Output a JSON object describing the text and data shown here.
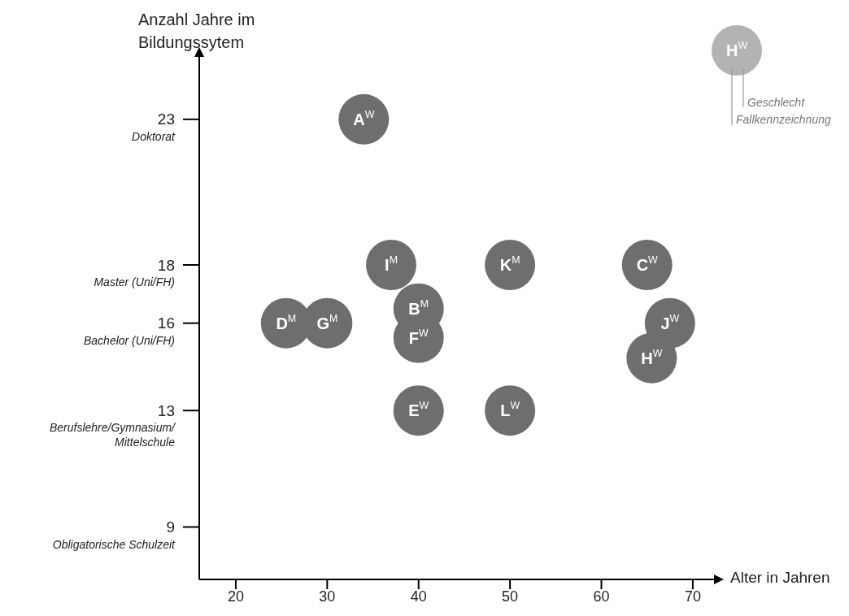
{
  "chart_data": {
    "type": "scatter",
    "xlabel": "Alter in Jahren",
    "ylabel": "Anzahl Jahre im Bildungssytem",
    "x": [
      34,
      37,
      50,
      65,
      40,
      25.5,
      30,
      40,
      67.5,
      65.5,
      40,
      50
    ],
    "series": [
      {
        "color": "#6e6e6e",
        "values": [
          23,
          18,
          18,
          18,
          16.5,
          16,
          16,
          15.5,
          16,
          14.8,
          13,
          13
        ],
        "value_labels": [
          "A$^{W}$",
          "I$^{M}$",
          "K$^{M}$",
          "C$^{W}$",
          "B$^{M}$",
          "D$^{M}$",
          "G$^{M}$",
          "F$^{W}$",
          "J$^{W}$",
          "H$^{W}$",
          "E$^{W}$",
          "L$^{W}$"
        ]
      }
    ],
    "marker": "circle",
    "xlim": [
      16,
      72.5
    ],
    "ylim": [
      7.2,
      25.2
    ],
    "xticks": [
      20,
      30,
      40,
      50,
      60,
      70
    ],
    "yticks": [
      9,
      13,
      16,
      18,
      23
    ],
    "annotations": [
      "H$^{W}$",
      "Geschlecht",
      "Fallkennzeichnung",
      "Obligatorische Schulzeit",
      "Berufslehre/Gymnasium/\nMittelschule",
      "Bachelor (Uni/FH)",
      "Master (Uni/FH)",
      "Doktorat"
    ]
  }
}
